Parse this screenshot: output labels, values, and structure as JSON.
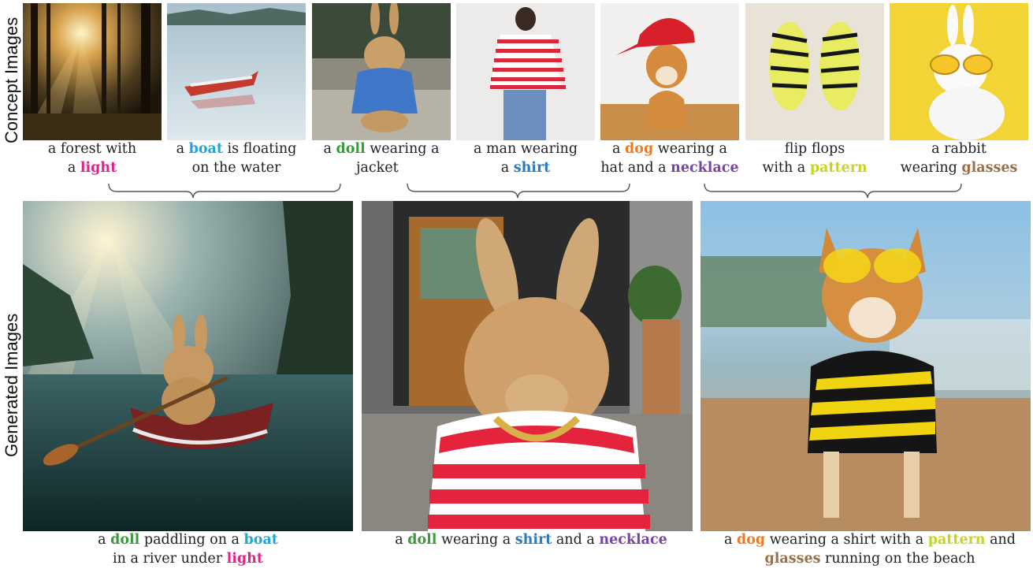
{
  "side_labels": {
    "concept": "Concept Images",
    "generated": "Generated Images"
  },
  "colors": {
    "light": "#e0248c",
    "boat": "#1ea6d8",
    "doll": "#3a9a3c",
    "shirt": "#2b7bbd",
    "dog": "#ef7a22",
    "necklace": "#7a43a8",
    "pattern": "#c8d41e",
    "glasses": "#9a7048"
  },
  "concepts": [
    {
      "line1_pre": "a forest with",
      "line2_pre": "a ",
      "kw": "light",
      "line2_post": ""
    },
    {
      "line1_pre": "a ",
      "kw": "boat",
      "line1_post": " is floating",
      "line2_pre": "on the water"
    },
    {
      "line1_pre": "a ",
      "kw": "doll",
      "line1_post": " wearing a",
      "line2_pre": "jacket"
    },
    {
      "line1_pre": "a man wearing",
      "line2_pre": "a ",
      "kw": "shirt",
      "line2_post": ""
    },
    {
      "line1_pre": "a ",
      "kw": "dog",
      "line1_post": " wearing a",
      "line2_pre": "hat and a ",
      "kw2": "necklace"
    },
    {
      "line1_pre": "flip flops",
      "line2_pre": "with a ",
      "kw": "pattern",
      "line2_post": ""
    },
    {
      "line1_pre": "a rabbit",
      "line2_pre": "wearing ",
      "kw": "glasses",
      "line2_post": ""
    }
  ],
  "generated": [
    {
      "l1a": "a ",
      "l1kw1": "doll",
      "l1b": " paddling on a ",
      "l1kw2": "boat",
      "l2a": "in a river under ",
      "l2kw": "light"
    },
    {
      "l1a": "a ",
      "l1kw1": "doll",
      "l1b": " wearing a ",
      "l1kw2": "shirt",
      "l1c": " and a ",
      "l1kw3": "necklace"
    },
    {
      "l1a": "a ",
      "l1kw1": "dog",
      "l1b": " wearing a shirt with a ",
      "l1kw2": "pattern",
      "l1c": " and",
      "l2kw": "glasses",
      "l2a": " running on the beach"
    }
  ]
}
